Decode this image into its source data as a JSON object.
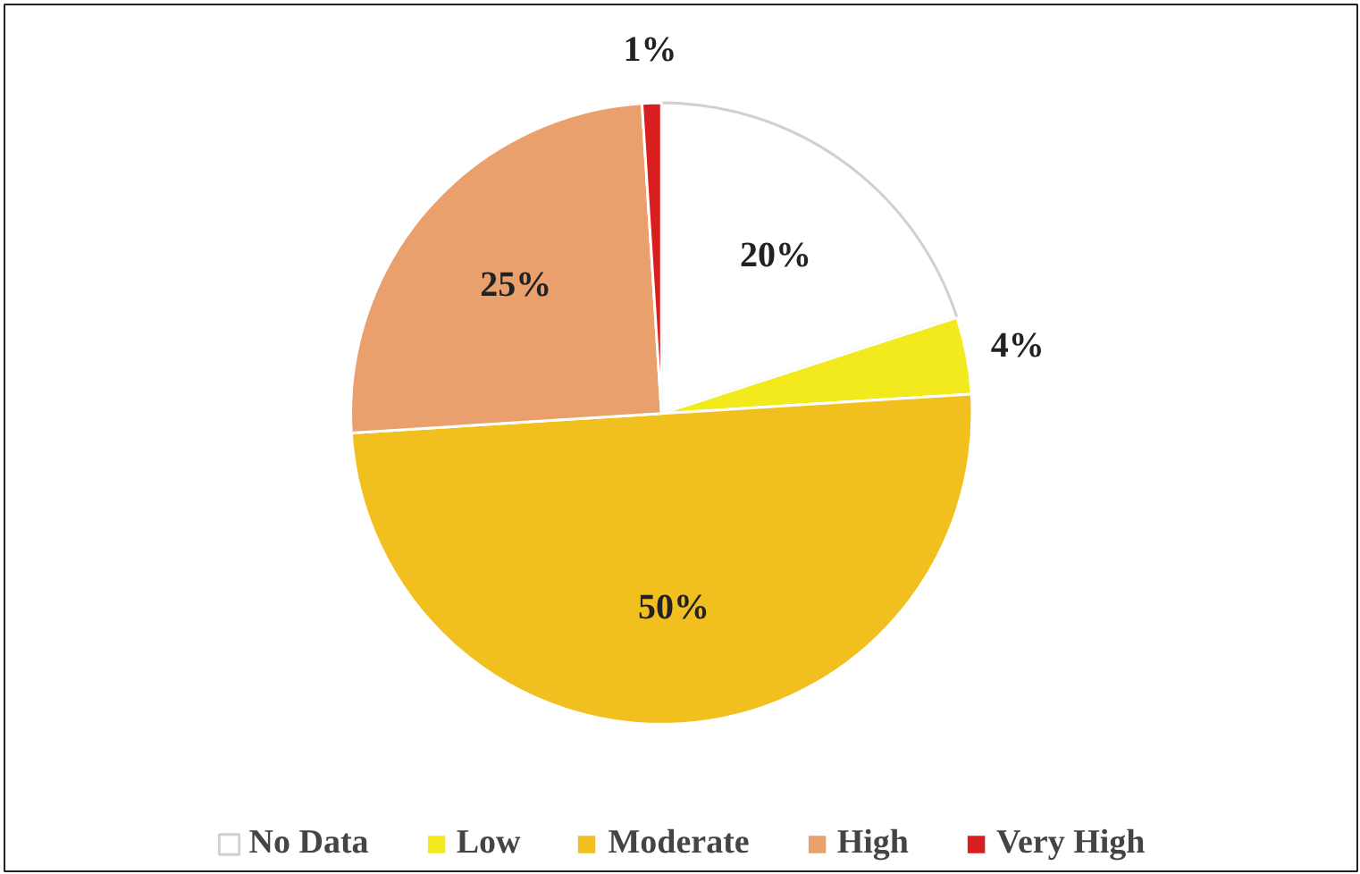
{
  "chart_data": {
    "type": "pie",
    "categories": [
      "No Data",
      "Low",
      "Moderate",
      "High",
      "Very High"
    ],
    "values": [
      20,
      4,
      50,
      25,
      1
    ],
    "colors": [
      "#ffffff",
      "#f2ea1c",
      "#f2c01e",
      "#e9a06c",
      "#d81e1e"
    ],
    "value_labels": [
      "20%",
      "4%",
      "50%",
      "25%",
      "1%"
    ],
    "legend": "bottom"
  }
}
